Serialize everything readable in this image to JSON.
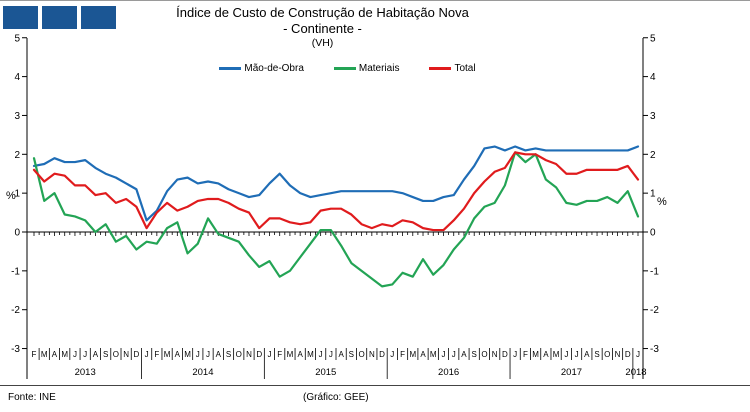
{
  "logo": {
    "color": "#1B5694",
    "squares": 3
  },
  "footer": {
    "source": "Fonte: INE",
    "credit": "(Gráfico:  GEE)"
  },
  "chart_data": {
    "type": "line",
    "title": "Índice de Custo de Construção de Habitação Nova",
    "subtitle": "- Continente -",
    "unit_note": "(VH)",
    "ylabel": "%",
    "ylim": [
      -3,
      5
    ],
    "y_ticks": [
      5,
      4,
      3,
      2,
      1,
      0,
      -1,
      -2,
      -3
    ],
    "grid": false,
    "legend_position": "top",
    "x_month_labels": [
      "F",
      "M",
      "A",
      "M",
      "J",
      "J",
      "A",
      "S",
      "O",
      "N",
      "D",
      "J",
      "F",
      "M",
      "A",
      "M",
      "J",
      "J",
      "A",
      "S",
      "O",
      "N",
      "D",
      "J",
      "F",
      "M",
      "A",
      "M",
      "J",
      "J",
      "A",
      "S",
      "O",
      "N",
      "D",
      "J",
      "F",
      "M",
      "A",
      "M",
      "J",
      "J",
      "A",
      "S",
      "O",
      "N",
      "D",
      "J",
      "F",
      "M",
      "A",
      "M",
      "J",
      "J",
      "A",
      "S",
      "O",
      "N",
      "D",
      "J"
    ],
    "years": [
      {
        "label": "2013",
        "months": 11
      },
      {
        "label": "2014",
        "months": 12
      },
      {
        "label": "2015",
        "months": 12
      },
      {
        "label": "2016",
        "months": 12
      },
      {
        "label": "2017",
        "months": 12
      },
      {
        "label": "2018",
        "months": 1
      }
    ],
    "series": [
      {
        "name": "Mão-de-Obra",
        "color": "#1F6DB6",
        "values": [
          1.7,
          1.75,
          1.9,
          1.8,
          1.8,
          1.85,
          1.65,
          1.5,
          1.4,
          1.25,
          1.1,
          0.3,
          0.55,
          1.05,
          1.35,
          1.4,
          1.25,
          1.3,
          1.25,
          1.1,
          1.0,
          0.9,
          0.95,
          1.25,
          1.5,
          1.2,
          1.0,
          0.9,
          0.95,
          1.0,
          1.05,
          1.05,
          1.05,
          1.05,
          1.05,
          1.05,
          1.0,
          0.9,
          0.8,
          0.8,
          0.9,
          0.95,
          1.35,
          1.7,
          2.15,
          2.2,
          2.1,
          2.2,
          2.1,
          2.15,
          2.1,
          2.1,
          2.1,
          2.1,
          2.1,
          2.1,
          2.1,
          2.1,
          2.1,
          2.2
        ]
      },
      {
        "name": "Materiais",
        "color": "#23A455",
        "values": [
          1.9,
          0.8,
          1.0,
          0.45,
          0.4,
          0.3,
          0.0,
          0.2,
          -0.25,
          -0.1,
          -0.45,
          -0.25,
          -0.3,
          0.1,
          0.25,
          -0.55,
          -0.3,
          0.35,
          -0.05,
          -0.15,
          -0.25,
          -0.6,
          -0.9,
          -0.75,
          -1.15,
          -1.0,
          -0.65,
          -0.3,
          0.05,
          0.05,
          -0.35,
          -0.8,
          -1.0,
          -1.2,
          -1.4,
          -1.35,
          -1.05,
          -1.15,
          -0.7,
          -1.1,
          -0.85,
          -0.45,
          -0.15,
          0.35,
          0.65,
          0.75,
          1.2,
          2.05,
          1.8,
          2.0,
          1.35,
          1.15,
          0.75,
          0.7,
          0.8,
          0.8,
          0.9,
          0.75,
          1.05,
          0.4
        ]
      },
      {
        "name": "Total",
        "color": "#E01B1D",
        "values": [
          1.6,
          1.3,
          1.5,
          1.45,
          1.2,
          1.2,
          0.95,
          1.0,
          0.75,
          0.85,
          0.65,
          0.1,
          0.5,
          0.75,
          0.55,
          0.65,
          0.8,
          0.85,
          0.85,
          0.75,
          0.6,
          0.5,
          0.1,
          0.35,
          0.35,
          0.25,
          0.2,
          0.25,
          0.55,
          0.6,
          0.6,
          0.45,
          0.2,
          0.1,
          0.2,
          0.15,
          0.3,
          0.25,
          0.1,
          0.05,
          0.05,
          0.3,
          0.6,
          1.0,
          1.3,
          1.55,
          1.65,
          2.05,
          2.0,
          2.0,
          1.85,
          1.75,
          1.5,
          1.5,
          1.6,
          1.6,
          1.6,
          1.6,
          1.7,
          1.35
        ]
      }
    ]
  }
}
